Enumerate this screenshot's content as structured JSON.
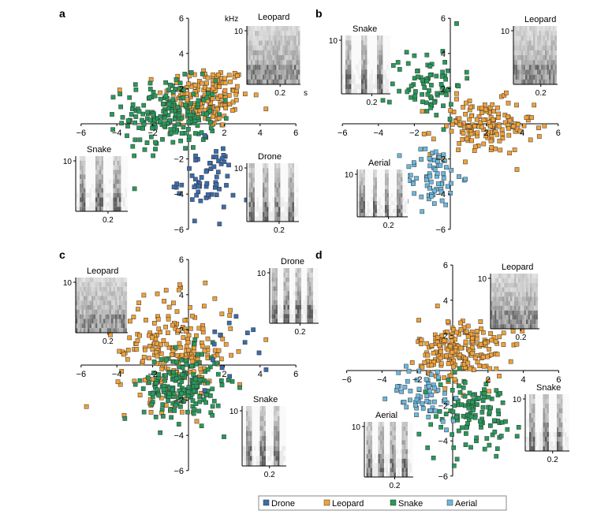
{
  "colors": {
    "Drone": "#3b6cad",
    "Leopard": "#f0a138",
    "Snake": "#279a5a",
    "Aerial": "#6cb8de"
  },
  "legend": [
    "Drone",
    "Leopard",
    "Snake",
    "Aerial"
  ],
  "chart_data": [
    {
      "type": "scatter",
      "panel": "a",
      "xlim": [
        -6,
        6
      ],
      "ylim": [
        -6,
        6
      ],
      "xticks": [
        -6,
        -4,
        -2,
        2,
        4,
        6
      ],
      "yticks": [
        -6,
        -4,
        -2,
        2,
        4,
        6
      ],
      "grid": false,
      "series": [
        {
          "name": "Leopard",
          "center": [
            1.0,
            1.5
          ],
          "spread": [
            1.2,
            0.9
          ],
          "n": 170
        },
        {
          "name": "Snake",
          "center": [
            -1.0,
            0.5
          ],
          "spread": [
            1.3,
            1.0
          ],
          "n": 200
        },
        {
          "name": "Drone",
          "center": [
            1.0,
            -3.2
          ],
          "spread": [
            0.8,
            1.0
          ],
          "n": 60
        }
      ],
      "insets": [
        {
          "title": "Leopard",
          "y_unit": "kHz",
          "x_unit": "s",
          "ytick": "10",
          "xtick": "0.2"
        },
        {
          "title": "Snake",
          "ytick": "10",
          "xtick": "0.2"
        },
        {
          "title": "Drone",
          "ytick": "10",
          "xtick": "0.2"
        }
      ]
    },
    {
      "type": "scatter",
      "panel": "b",
      "xlim": [
        -6,
        6
      ],
      "ylim": [
        -6,
        6
      ],
      "xticks": [
        -6,
        -4,
        -2,
        2,
        4,
        6
      ],
      "yticks": [
        -6,
        -4,
        -2,
        2,
        4,
        6
      ],
      "grid": false,
      "series": [
        {
          "name": "Leopard",
          "center": [
            1.8,
            -0.2
          ],
          "spread": [
            1.4,
            0.8
          ],
          "n": 150
        },
        {
          "name": "Snake",
          "center": [
            -1.3,
            2.3
          ],
          "spread": [
            1.0,
            1.0
          ],
          "n": 80
        },
        {
          "name": "Aerial",
          "center": [
            -1.0,
            -3.0
          ],
          "spread": [
            0.8,
            0.9
          ],
          "n": 70
        }
      ],
      "insets": [
        {
          "title": "Snake",
          "ytick": "10",
          "xtick": "0.2"
        },
        {
          "title": "Leopard",
          "ytick": "10",
          "xtick": "0.2"
        },
        {
          "title": "Aerial",
          "ytick": "10",
          "xtick": "0.2"
        }
      ]
    },
    {
      "type": "scatter",
      "panel": "c",
      "xlim": [
        -6,
        6
      ],
      "ylim": [
        -6,
        6
      ],
      "xticks": [
        -6,
        -4,
        -2,
        2,
        4,
        6
      ],
      "yticks": [
        -6,
        -4,
        -2,
        2,
        4,
        6
      ],
      "grid": false,
      "series": [
        {
          "name": "Leopard",
          "center": [
            -0.8,
            0.8
          ],
          "spread": [
            1.6,
            1.5
          ],
          "n": 230
        },
        {
          "name": "Snake",
          "center": [
            -0.3,
            -1.2
          ],
          "spread": [
            1.1,
            1.0
          ],
          "n": 190
        },
        {
          "name": "Drone",
          "center": [
            2.5,
            1.2
          ],
          "spread": [
            1.0,
            1.2
          ],
          "n": 14
        }
      ],
      "insets": [
        {
          "title": "Leopard",
          "ytick": "10",
          "xtick": "0.2"
        },
        {
          "title": "Drone",
          "ytick": "10",
          "xtick": "0.2"
        },
        {
          "title": "Snake",
          "ytick": "10",
          "xtick": "0.2"
        }
      ]
    },
    {
      "type": "scatter",
      "panel": "d",
      "xlim": [
        -6,
        6
      ],
      "ylim": [
        -6,
        6
      ],
      "xticks": [
        -6,
        -4,
        -2,
        2,
        4,
        6
      ],
      "yticks": [
        -6,
        -4,
        -2,
        2,
        4,
        6
      ],
      "grid": false,
      "series": [
        {
          "name": "Leopard",
          "center": [
            0.5,
            1.2
          ],
          "spread": [
            1.2,
            0.9
          ],
          "n": 210
        },
        {
          "name": "Snake",
          "center": [
            1.0,
            -2.5
          ],
          "spread": [
            1.4,
            1.1
          ],
          "n": 120
        },
        {
          "name": "Aerial",
          "center": [
            -1.5,
            -1.3
          ],
          "spread": [
            1.0,
            0.8
          ],
          "n": 60
        }
      ],
      "insets": [
        {
          "title": "Leopard",
          "ytick": "10",
          "xtick": "0.2"
        },
        {
          "title": "Aerial",
          "ytick": "10",
          "xtick": "0.2"
        },
        {
          "title": "Snake",
          "ytick": "10",
          "xtick": "0.2"
        }
      ]
    }
  ]
}
